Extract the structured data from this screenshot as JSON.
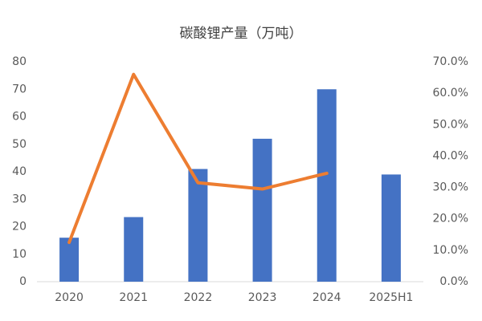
{
  "chart_data": {
    "type": "combo",
    "title": "碳酸锂产量（万吨）",
    "categories": [
      "2020",
      "2021",
      "2022",
      "2023",
      "2024",
      "2025H1"
    ],
    "series": [
      {
        "type": "bar",
        "color": "#4472c4",
        "values": [
          16,
          23.5,
          41,
          52,
          70,
          39
        ]
      },
      {
        "type": "line",
        "axis": "y2",
        "color": "#ed7d31",
        "values": [
          12.5,
          66,
          31.5,
          29.5,
          34.5,
          null
        ]
      }
    ],
    "ylim": [
      0,
      80
    ],
    "yticks": [
      0,
      10,
      20,
      30,
      40,
      50,
      60,
      70,
      80
    ],
    "y2lim": [
      0,
      70
    ],
    "y2ticks": [
      {
        "value": 0,
        "label": "0.0%"
      },
      {
        "value": 10,
        "label": "10.0%"
      },
      {
        "value": 20,
        "label": "20.0%"
      },
      {
        "value": 30,
        "label": "30.0%"
      },
      {
        "value": 40,
        "label": "40.0%"
      },
      {
        "value": 50,
        "label": "50.0%"
      },
      {
        "value": 60,
        "label": "60.0%"
      },
      {
        "value": 70,
        "label": "70.0%"
      }
    ],
    "grid": false
  }
}
